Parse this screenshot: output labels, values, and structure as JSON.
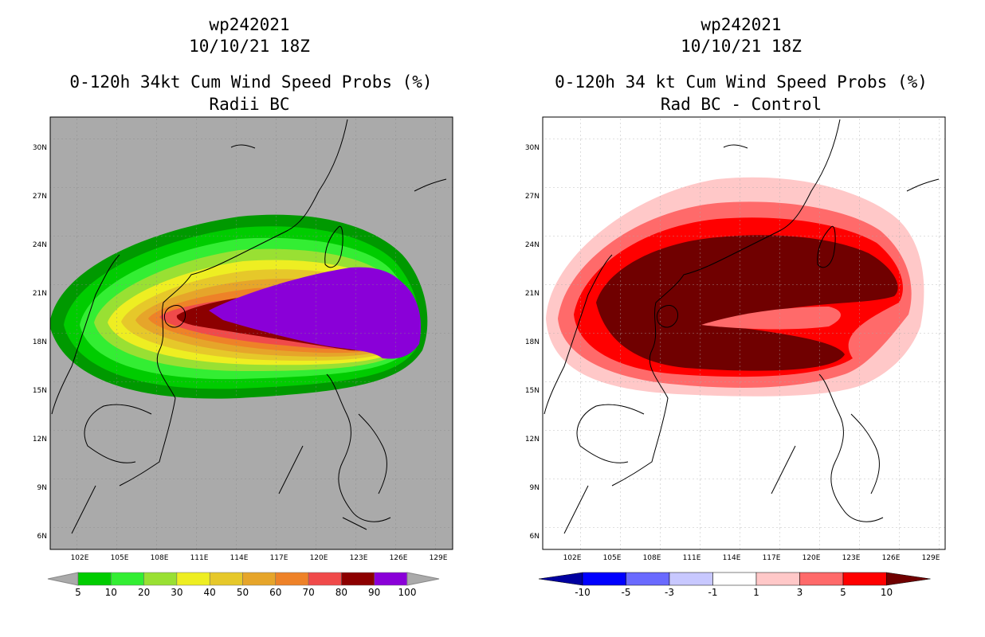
{
  "left_panel": {
    "storm_id": "wp242021",
    "datetime": "10/10/21 18Z",
    "title": "0-120h 34kt Cum Wind Speed Probs (%)",
    "subtitle": "Radii BC",
    "colorbar_labels": [
      "5",
      "10",
      "20",
      "30",
      "40",
      "50",
      "60",
      "70",
      "80",
      "90",
      "100"
    ],
    "colors": [
      "#009900",
      "#00cc00",
      "#33ee33",
      "#99e033",
      "#eeee22",
      "#e6c82a",
      "#e6a52a",
      "#ee8228",
      "#f04a4a",
      "#8c0000",
      "#8a00d8"
    ]
  },
  "right_panel": {
    "storm_id": "wp242021",
    "datetime": "10/10/21 18Z",
    "title": "0-120h 34 kt Cum Wind Speed Probs (%)",
    "subtitle": "Rad BC - Control",
    "colorbar_labels": [
      "-10",
      "-5",
      "-3",
      "-1",
      "1",
      "3",
      "5",
      "10"
    ],
    "colors": [
      "#0000a0",
      "#0000ff",
      "#6a6aff",
      "#c8c8ff",
      "#ffffff",
      "#ffc8c8",
      "#ff6a6a",
      "#ff0000",
      "#700000"
    ]
  },
  "lat_ticks": [
    "30N",
    "27N",
    "24N",
    "21N",
    "18N",
    "15N",
    "12N",
    "9N",
    "6N"
  ],
  "lon_ticks": [
    "102E",
    "105E",
    "108E",
    "111E",
    "114E",
    "117E",
    "120E",
    "123E",
    "126E",
    "129E"
  ],
  "map_background": "#aaaaaa"
}
